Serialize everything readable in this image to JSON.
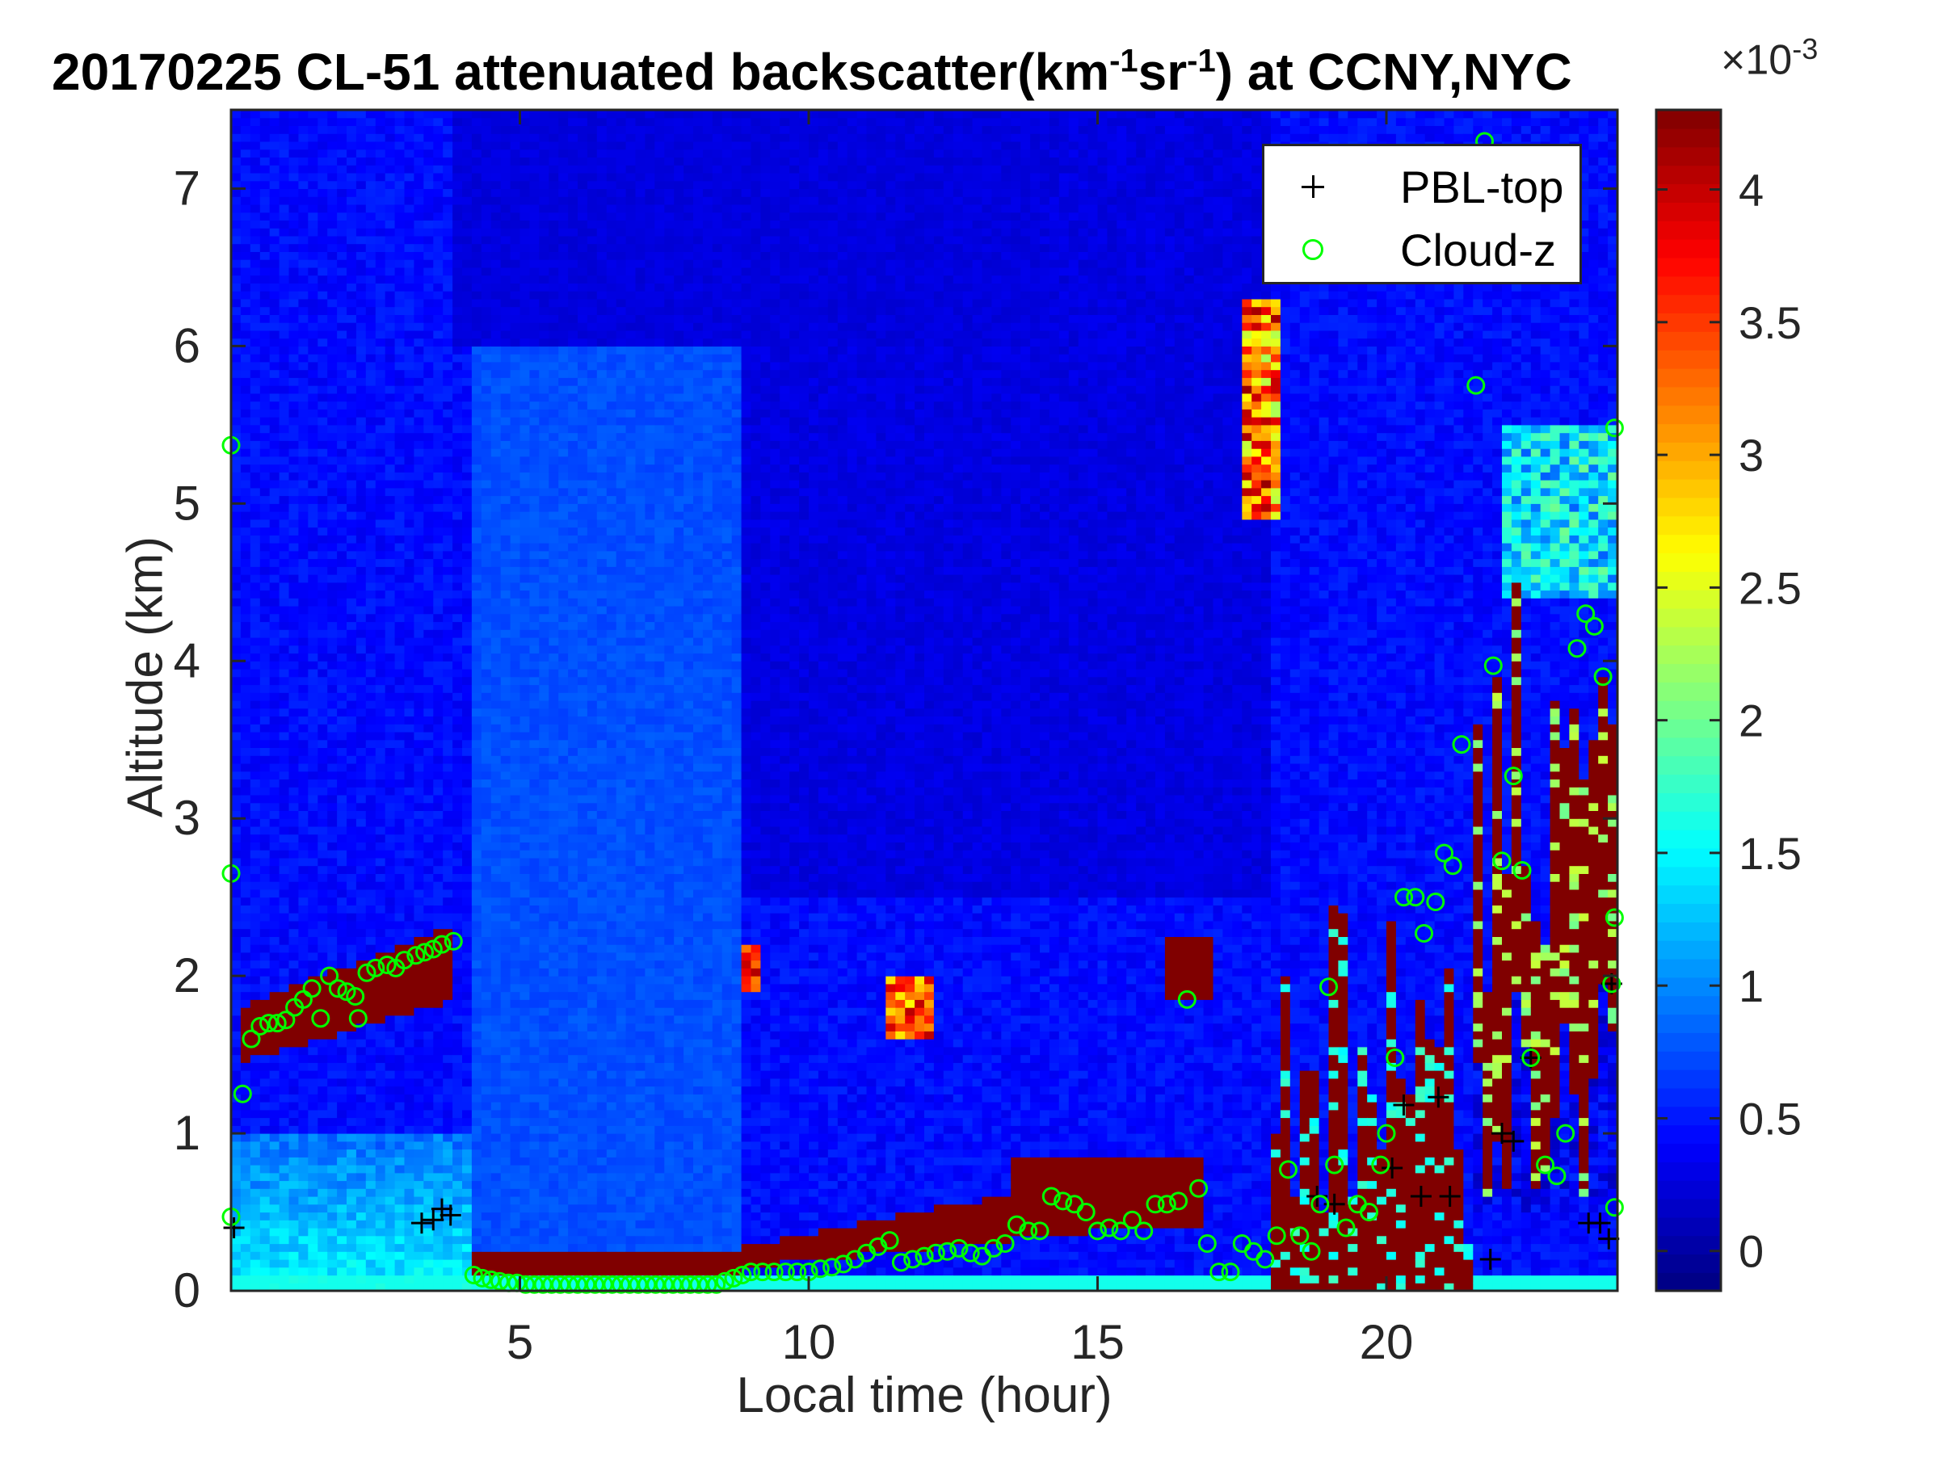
{
  "chart_data": {
    "type": "heatmap",
    "title": "20170225  CL-51 attenuated backscatter(km^-1sr^-1) at CCNY,NYC",
    "title_parts": {
      "main": "20170225  CL-51 attenuated backscatter(km",
      "sup1": "-1",
      "mid": "sr",
      "sup2": "-1",
      "end": ") at CCNY,NYC"
    },
    "xlabel": "Local time (hour)",
    "ylabel": "Altitude (km)",
    "xlim": [
      0,
      24
    ],
    "ylim": [
      0,
      7.5
    ],
    "xticks": [
      5,
      10,
      15,
      20
    ],
    "yticks": [
      0,
      1,
      2,
      3,
      4,
      5,
      6,
      7
    ],
    "colorbar": {
      "colormap": "jet",
      "clim": [
        -0.15,
        4.3
      ],
      "ticks": [
        0,
        0.5,
        1,
        1.5,
        2,
        2.5,
        3,
        3.5,
        4
      ],
      "exponent_label": "×10^-3",
      "exponent_parts": {
        "base": "×10",
        "sup": "-3"
      }
    },
    "legend": {
      "placement": "top-right",
      "entries": [
        {
          "label": "PBL-top",
          "marker": "+",
          "color": "#000000"
        },
        {
          "label": "Cloud-z",
          "marker": "o",
          "color": "#00ff00"
        }
      ]
    },
    "layers": [
      {
        "name": "cloud_band",
        "x0": 0.1,
        "x1": 3.9,
        "y0_start": 1.45,
        "y0_end": 1.85,
        "y1_start": 1.8,
        "y1_end": 2.32,
        "value": 4.3
      },
      {
        "name": "surface_layer_night",
        "x0": 4.2,
        "x1": 8.8,
        "y0": 0.1,
        "y1": 0.25,
        "value": 4.3
      },
      {
        "name": "surface_layer_day",
        "x0": 8.8,
        "x1": 16.8,
        "y0_start": 0.15,
        "y0_end": 0.45,
        "y1_start": 0.28,
        "y1_end": 0.85,
        "value": 4.3
      },
      {
        "name": "afternoon_mixing_layer",
        "x0": 13.5,
        "x1": 16.8,
        "y0": 0.4,
        "y1": 0.85,
        "value": 4.3
      },
      {
        "name": "cloud_9h",
        "x0": 8.85,
        "x1": 9.1,
        "y0": 1.9,
        "y1": 2.2,
        "value": 3.5
      },
      {
        "name": "cloud_11_5h",
        "x0": 11.4,
        "x1": 12.1,
        "y0": 1.6,
        "y1": 2.0,
        "value": 3.0
      },
      {
        "name": "cloud_16_5h",
        "x0": 16.2,
        "x1": 17.0,
        "y0": 1.85,
        "y1": 2.25,
        "value": 4.3
      },
      {
        "name": "evening_precip",
        "x0": 18.0,
        "x1": 21.5,
        "y0": 0.0,
        "y1": 2.5,
        "value": 4.3
      },
      {
        "name": "late_cloud_deck",
        "x0": 21.5,
        "x1": 24.0,
        "y0": 0.5,
        "y1": 4.5,
        "value": 4.3
      }
    ],
    "pbl_top": {
      "x": [
        0.05,
        3.3,
        3.5,
        3.65,
        3.8,
        18.8,
        19.1,
        20.1,
        20.3,
        20.6,
        20.9,
        21.1,
        21.8,
        22.0,
        22.2,
        22.5,
        23.5,
        23.7,
        23.85,
        23.9
      ],
      "y": [
        0.4,
        0.43,
        0.45,
        0.52,
        0.48,
        0.6,
        0.55,
        0.78,
        1.18,
        0.6,
        1.23,
        0.6,
        0.2,
        1.0,
        0.95,
        1.48,
        0.43,
        0.43,
        0.33,
        1.95
      ]
    },
    "cloud_z": {
      "x": [
        0.0,
        0.0,
        0.0,
        0.2,
        0.35,
        0.5,
        0.65,
        0.8,
        0.95,
        1.1,
        1.25,
        1.4,
        1.55,
        1.7,
        1.85,
        2.0,
        2.15,
        2.2,
        2.35,
        2.5,
        2.7,
        2.85,
        3.0,
        3.2,
        3.35,
        3.5,
        3.65,
        3.85,
        4.2,
        4.35,
        4.5,
        4.65,
        4.8,
        4.95,
        5.1,
        5.25,
        5.4,
        5.55,
        5.7,
        5.85,
        6.0,
        6.15,
        6.3,
        6.45,
        6.6,
        6.75,
        6.9,
        7.05,
        7.2,
        7.35,
        7.5,
        7.65,
        7.8,
        7.95,
        8.1,
        8.25,
        8.4,
        8.55,
        8.7,
        8.85,
        9.0,
        9.2,
        9.4,
        9.6,
        9.8,
        10.0,
        10.2,
        10.4,
        10.6,
        10.8,
        11.0,
        11.2,
        11.4,
        11.6,
        11.8,
        12.0,
        12.2,
        12.4,
        12.6,
        12.8,
        13.0,
        13.2,
        13.4,
        13.6,
        13.8,
        14.0,
        14.2,
        14.4,
        14.6,
        14.8,
        15.0,
        15.2,
        15.4,
        15.6,
        15.8,
        16.0,
        16.2,
        16.4,
        16.55,
        16.75,
        16.9,
        17.1,
        17.3,
        17.5,
        17.7,
        17.9,
        18.1,
        18.3,
        18.5,
        18.7,
        18.85,
        19.0,
        19.1,
        19.3,
        19.5,
        19.7,
        19.9,
        20.0,
        20.15,
        20.3,
        20.5,
        20.65,
        20.85,
        21.0,
        21.15,
        21.3,
        21.55,
        21.7,
        21.85,
        22.0,
        22.2,
        22.35,
        22.5,
        22.75,
        22.95,
        23.1,
        23.3,
        23.45,
        23.6,
        23.75,
        23.9,
        23.95,
        23.95,
        23.95
      ],
      "y": [
        5.37,
        2.65,
        0.47,
        1.25,
        1.6,
        1.68,
        1.7,
        1.7,
        1.72,
        1.8,
        1.85,
        1.92,
        1.73,
        2.0,
        1.92,
        1.9,
        1.87,
        1.73,
        2.02,
        2.05,
        2.07,
        2.05,
        2.1,
        2.13,
        2.15,
        2.17,
        2.2,
        2.22,
        0.1,
        0.08,
        0.07,
        0.06,
        0.05,
        0.05,
        0.04,
        0.04,
        0.04,
        0.04,
        0.04,
        0.04,
        0.04,
        0.04,
        0.04,
        0.04,
        0.04,
        0.04,
        0.04,
        0.04,
        0.04,
        0.04,
        0.04,
        0.04,
        0.04,
        0.04,
        0.04,
        0.04,
        0.04,
        0.06,
        0.08,
        0.1,
        0.12,
        0.12,
        0.12,
        0.12,
        0.12,
        0.12,
        0.14,
        0.15,
        0.17,
        0.2,
        0.24,
        0.28,
        0.32,
        0.18,
        0.2,
        0.22,
        0.24,
        0.25,
        0.27,
        0.24,
        0.22,
        0.27,
        0.3,
        0.42,
        0.38,
        0.38,
        0.6,
        0.57,
        0.55,
        0.5,
        0.38,
        0.4,
        0.38,
        0.45,
        0.38,
        0.55,
        0.55,
        0.57,
        1.85,
        0.65,
        0.3,
        0.12,
        0.12,
        0.3,
        0.25,
        0.2,
        0.35,
        0.77,
        0.35,
        0.25,
        0.55,
        1.93,
        0.8,
        0.4,
        0.55,
        0.5,
        0.8,
        1.0,
        1.48,
        2.5,
        2.5,
        2.27,
        2.47,
        2.78,
        2.7,
        3.47,
        5.75,
        7.3,
        3.97,
        2.73,
        3.27,
        2.67,
        1.48,
        0.8,
        0.73,
        1.0,
        4.08,
        4.3,
        4.22,
        3.9,
        1.95,
        2.37,
        0.53,
        5.48
      ]
    }
  }
}
